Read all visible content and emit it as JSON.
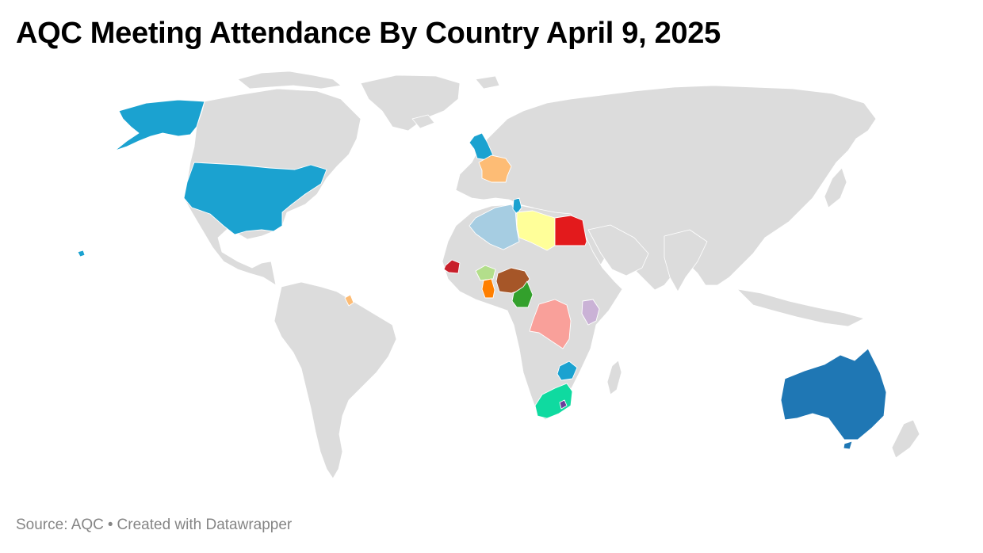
{
  "title": "AQC Meeting Attendance By Country April 9, 2025",
  "footer": {
    "source": "Source: AQC",
    "separator": "•",
    "credit": "Created with Datawrapper"
  },
  "map": {
    "base_color": "#dcdcdc",
    "border_color": "#ffffff",
    "highlighted_countries": [
      {
        "id": "united-states",
        "color": "#1ba2d0"
      },
      {
        "id": "united-kingdom",
        "color": "#1ba2d0"
      },
      {
        "id": "france",
        "color": "#fdbc75"
      },
      {
        "id": "algeria",
        "color": "#a6cde2"
      },
      {
        "id": "tunisia",
        "color": "#1ba2d0"
      },
      {
        "id": "libya",
        "color": "#ffff99"
      },
      {
        "id": "egypt",
        "color": "#e31a1c"
      },
      {
        "id": "senegal",
        "color": "#c81f2a"
      },
      {
        "id": "burkina-faso",
        "color": "#b3de8b"
      },
      {
        "id": "ghana",
        "color": "#ff7f00"
      },
      {
        "id": "nigeria",
        "color": "#a65628"
      },
      {
        "id": "cameroon",
        "color": "#33a02c"
      },
      {
        "id": "dr-congo",
        "color": "#f9a09a"
      },
      {
        "id": "kenya",
        "color": "#cab2d6"
      },
      {
        "id": "zimbabwe",
        "color": "#1ba2d0"
      },
      {
        "id": "south-africa",
        "color": "#0fdaa0"
      },
      {
        "id": "lesotho",
        "color": "#6a3d9a"
      },
      {
        "id": "french-guiana",
        "color": "#fdbc75"
      },
      {
        "id": "australia",
        "color": "#1f77b4"
      }
    ]
  }
}
